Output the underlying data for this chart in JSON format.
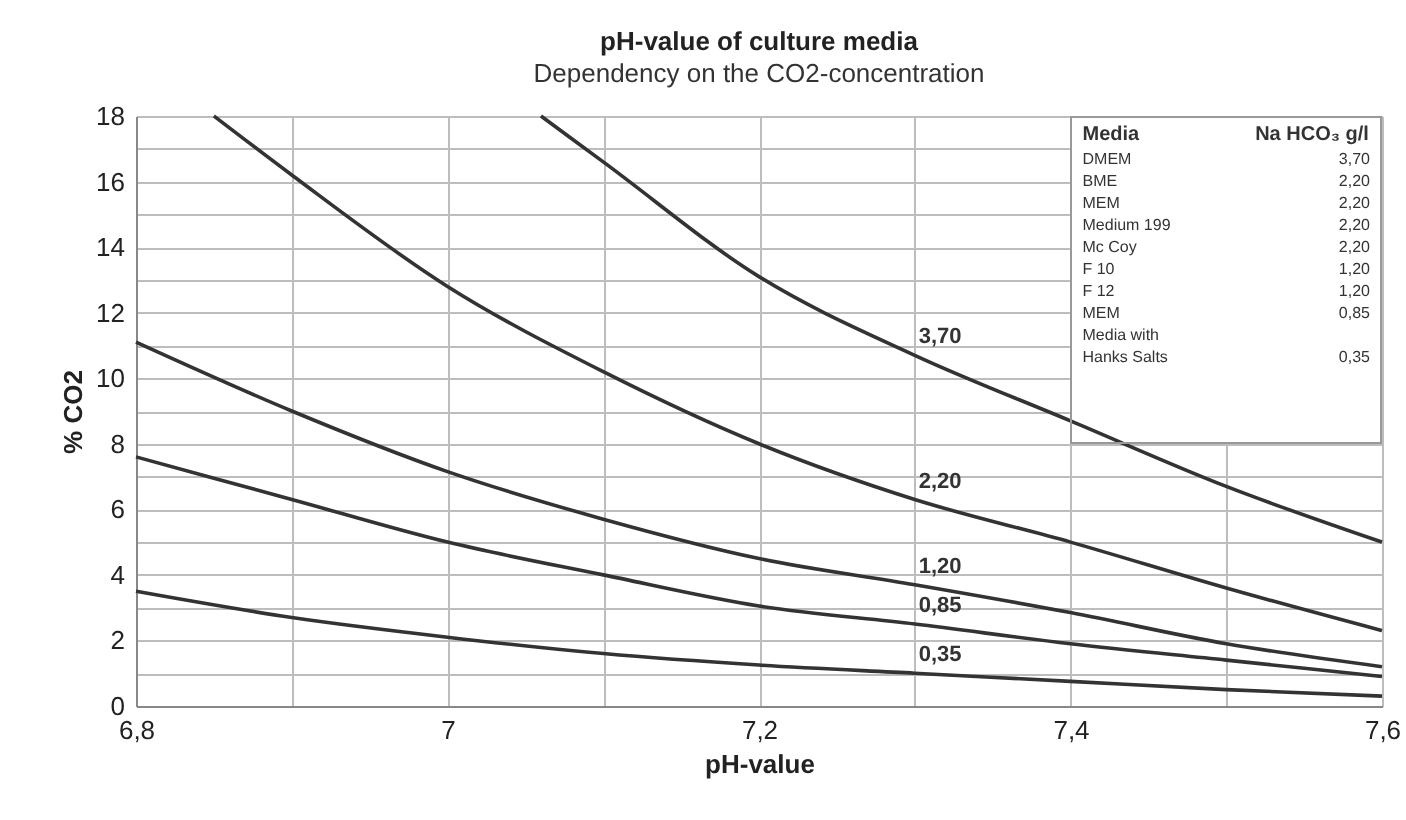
{
  "chart_data": {
    "type": "line",
    "title": "pH-value of culture media",
    "subtitle": "Dependency on the CO2-concentration",
    "xlabel": "pH-value",
    "ylabel": "% CO2",
    "xlim": [
      6.8,
      7.6
    ],
    "xticks": [
      {
        "value": 6.8,
        "label": "6,8"
      },
      {
        "value": 6.9,
        "label": null
      },
      7,
      {
        "value": 7.1,
        "label": null
      },
      {
        "value": 7.2,
        "label": "7,2"
      },
      {
        "value": 7.3,
        "label": null
      },
      {
        "value": 7.4,
        "label": "7,4"
      },
      {
        "value": 7.5,
        "label": null
      },
      {
        "value": 7.6,
        "label": "7,6"
      }
    ],
    "ylim": [
      0,
      18
    ],
    "yticks": [
      0,
      {
        "value": 1,
        "label": null
      },
      2,
      {
        "value": 3,
        "label": null
      },
      4,
      {
        "value": 5,
        "label": null
      },
      6,
      {
        "value": 7,
        "label": null
      },
      8,
      {
        "value": 9,
        "label": null
      },
      10,
      {
        "value": 11,
        "label": null
      },
      12,
      {
        "value": 13,
        "label": null
      },
      14,
      {
        "value": 15,
        "label": null
      },
      16,
      {
        "value": 17,
        "label": null
      },
      18
    ],
    "grid": true,
    "legend": false,
    "marker": "none",
    "line_style": "solid",
    "series": [
      {
        "name": "3,70",
        "color": "#333333",
        "x": [
          7.06,
          7.1,
          7.2,
          7.3,
          7.4,
          7.5,
          7.6
        ],
        "values": [
          18,
          16.6,
          13.1,
          10.7,
          8.7,
          6.7,
          5.0
        ]
      },
      {
        "name": "2,20",
        "color": "#333333",
        "x": [
          6.85,
          6.9,
          7.0,
          7.1,
          7.2,
          7.3,
          7.4,
          7.5,
          7.6
        ],
        "values": [
          18,
          16.2,
          12.8,
          10.2,
          8.0,
          6.3,
          5.0,
          3.6,
          2.3
        ]
      },
      {
        "name": "1,20",
        "color": "#333333",
        "x": [
          6.8,
          6.9,
          7.0,
          7.1,
          7.2,
          7.3,
          7.4,
          7.5,
          7.6
        ],
        "values": [
          11.1,
          9.0,
          7.15,
          5.7,
          4.5,
          3.7,
          2.85,
          1.9,
          1.2
        ]
      },
      {
        "name": "0,85",
        "color": "#333333",
        "x": [
          6.8,
          6.9,
          7.0,
          7.1,
          7.2,
          7.3,
          7.4,
          7.5,
          7.6
        ],
        "values": [
          7.6,
          6.3,
          5.0,
          4.0,
          3.05,
          2.5,
          1.9,
          1.4,
          0.9
        ]
      },
      {
        "name": "0,35",
        "color": "#333333",
        "x": [
          6.8,
          6.9,
          7.0,
          7.1,
          7.2,
          7.3,
          7.4,
          7.5,
          7.6
        ],
        "values": [
          3.5,
          2.7,
          2.1,
          1.6,
          1.25,
          1.0,
          0.75,
          0.5,
          0.3
        ]
      }
    ],
    "annotations": [
      "Media",
      "Na HCO₃ g/l",
      "DMEM",
      "3,70",
      "BME",
      "2,20",
      "MEM",
      "2,20",
      "Medium 199",
      "2,20",
      "Mc Coy",
      "2,20",
      "F 10",
      "1,20",
      "F 12",
      "1,20",
      "MEM",
      "0,85",
      "Media with Hanks Salts",
      "0,35"
    ]
  }
}
